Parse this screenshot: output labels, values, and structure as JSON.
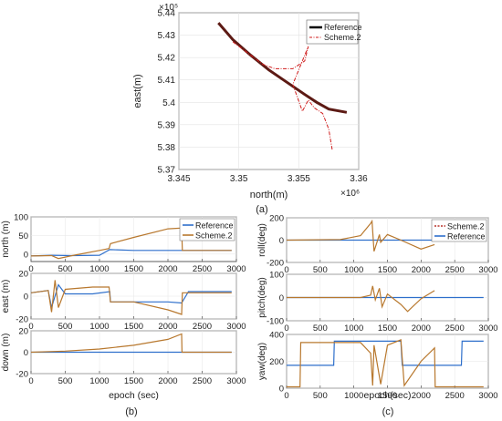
{
  "figure": {
    "caption_a": "(a)",
    "caption_b": "(b)",
    "caption_c": "(c)"
  },
  "colors": {
    "reference_a": "#000000",
    "scheme2_a": "#d01c1c",
    "reference_bc": "#2e6fcb",
    "scheme2_bc": "#b8782e",
    "scheme2_c_legend": "#b8332a"
  },
  "chart_data": [
    {
      "id": "a",
      "type": "line",
      "xlabel": "north(m)",
      "ylabel": "east(m)",
      "x_exponent": "×10⁶",
      "y_exponent": "×10⁵",
      "xlim": [
        3.345,
        3.36
      ],
      "ylim": [
        5.37,
        5.44
      ],
      "xticks": [
        3.345,
        3.35,
        3.355,
        3.36
      ],
      "xtick_labels": [
        "3.345",
        "3.35",
        "3.355",
        "3.36"
      ],
      "yticks": [
        5.37,
        5.38,
        5.39,
        5.4,
        5.41,
        5.42,
        5.43,
        5.44
      ],
      "ytick_labels": [
        "5.37",
        "5.38",
        "5.39",
        "5.4",
        "5.41",
        "5.42",
        "5.43",
        "5.44"
      ],
      "grid": true,
      "legend": "top-right",
      "series": [
        {
          "name": "Reference",
          "style": "solid-thick",
          "x": [
            3.3483,
            3.3495,
            3.351,
            3.3525,
            3.354,
            3.3555,
            3.3565,
            3.3575,
            3.359
          ],
          "y": [
            5.4355,
            5.428,
            5.421,
            5.4145,
            5.409,
            5.4035,
            5.4,
            5.397,
            5.3955
          ]
        },
        {
          "name": "Scheme.2",
          "style": "dashdot",
          "x": [
            3.3495,
            3.351,
            3.352,
            3.353,
            3.3545,
            3.3555,
            3.3558,
            3.3545,
            3.3553,
            3.3558,
            3.3563,
            3.357,
            3.3575,
            3.3578
          ],
          "y": [
            5.427,
            5.421,
            5.417,
            5.415,
            5.415,
            5.4185,
            5.425,
            5.408,
            5.396,
            5.401,
            5.3975,
            5.395,
            5.388,
            5.3785
          ]
        }
      ]
    },
    {
      "id": "b",
      "type": "line",
      "xlabel": "epoch (sec)",
      "xlim": [
        0,
        3000
      ],
      "xticks": [
        0,
        500,
        1000,
        1500,
        2000,
        2500,
        3000
      ],
      "xtick_labels": [
        "0",
        "500",
        "1000",
        "1500",
        "2000",
        "2500",
        "3000"
      ],
      "legend": "top-right",
      "panels": [
        {
          "ylabel": "north (m)",
          "ylim": [
            -20,
            100
          ],
          "yticks": [
            0,
            50,
            100
          ],
          "ytick_labels": [
            "0",
            "50",
            "100"
          ],
          "series": [
            {
              "name": "Reference",
              "x": [
                0,
                300,
                600,
                1000,
                1150,
                1500,
                2000,
                2200,
                2500,
                2930
              ],
              "y": [
                -5,
                -3,
                -4,
                -3,
                12,
                10,
                10,
                10,
                10,
                10
              ]
            },
            {
              "name": "Scheme.2",
              "x": [
                0,
                300,
                400,
                600,
                1000,
                1140,
                1160,
                1500,
                2000,
                2200,
                2210,
                2500,
                2930
              ],
              "y": [
                -5,
                -4,
                -12,
                -4,
                10,
                15,
                28,
                45,
                68,
                70,
                10,
                10,
                10
              ]
            }
          ]
        },
        {
          "ylabel": "east (m)",
          "ylim": [
            -20,
            20
          ],
          "yticks": [
            -20,
            0,
            20
          ],
          "ytick_labels": [
            "-20",
            "0",
            "20"
          ],
          "series": [
            {
              "name": "Reference",
              "x": [
                0,
                250,
                300,
                400,
                500,
                900,
                1150,
                1160,
                1500,
                2000,
                2200,
                2300,
                2930
              ],
              "y": [
                3,
                5,
                -10,
                10,
                2,
                2,
                4,
                -5,
                -5,
                -5,
                -6,
                4,
                4
              ]
            },
            {
              "name": "Scheme.2",
              "x": [
                0,
                250,
                300,
                350,
                400,
                500,
                900,
                1140,
                1160,
                1500,
                2000,
                2200,
                2210,
                2930
              ],
              "y": [
                3,
                5,
                -14,
                14,
                -10,
                6,
                8,
                8,
                -5,
                -5,
                -12,
                -16,
                3,
                3
              ]
            }
          ]
        },
        {
          "ylabel": "down (m)",
          "ylim": [
            -20,
            20
          ],
          "yticks": [
            -20,
            0,
            20
          ],
          "ytick_labels": [
            "-20",
            "0",
            "20"
          ],
          "series": [
            {
              "name": "Reference",
              "x": [
                0,
                2930
              ],
              "y": [
                0,
                0
              ]
            },
            {
              "name": "Scheme.2",
              "x": [
                0,
                500,
                1000,
                1500,
                2000,
                2200,
                2205,
                2930
              ],
              "y": [
                0,
                1,
                3,
                6.5,
                12,
                17,
                0,
                0
              ]
            }
          ]
        }
      ]
    },
    {
      "id": "c",
      "type": "line",
      "xlabel": "epoch(sec)",
      "xlim": [
        0,
        3000
      ],
      "xticks": [
        0,
        500,
        1000,
        1500,
        2000,
        2500,
        3000
      ],
      "xtick_labels": [
        "0",
        "500",
        "1000",
        "1500",
        "2000",
        "2500",
        "3000"
      ],
      "legend": "top-right",
      "panels": [
        {
          "ylabel": "roll(deg)",
          "ylim": [
            -200,
            200
          ],
          "yticks": [
            -200,
            0,
            200
          ],
          "ytick_labels": [
            "-200",
            "0",
            "200"
          ],
          "series": [
            {
              "name": "Reference",
              "x": [
                0,
                2930
              ],
              "y": [
                0,
                0
              ]
            },
            {
              "name": "Scheme.2",
              "x": [
                0,
                800,
                1100,
                1250,
                1270,
                1300,
                1380,
                1400,
                1500,
                1700,
                2000,
                2200
              ],
              "y": [
                0,
                5,
                40,
                150,
                170,
                -100,
                50,
                -20,
                50,
                0,
                -80,
                -40
              ]
            }
          ]
        },
        {
          "ylabel": "pitch(deg)",
          "ylim": [
            -100,
            100
          ],
          "yticks": [
            -100,
            0,
            100
          ],
          "ytick_labels": [
            "-100",
            "0",
            "100"
          ],
          "series": [
            {
              "name": "Reference",
              "x": [
                0,
                2930
              ],
              "y": [
                0,
                0
              ]
            },
            {
              "name": "Scheme.2",
              "x": [
                0,
                1100,
                1250,
                1280,
                1320,
                1380,
                1420,
                1500,
                1700,
                1800,
                2000,
                2200
              ],
              "y": [
                0,
                0,
                10,
                50,
                -10,
                40,
                -40,
                15,
                -30,
                -60,
                -5,
                30
              ]
            }
          ]
        },
        {
          "ylabel": "yaw(deg)",
          "ylim": [
            0,
            400
          ],
          "yticks": [
            0,
            200,
            400
          ],
          "ytick_labels": [
            "0",
            "200",
            "400"
          ],
          "series": [
            {
              "name": "Reference",
              "x": [
                0,
                700,
                710,
                1100,
                1120,
                1700,
                1720,
                2200,
                2210,
                2600,
                2610,
                2930
              ],
              "y": [
                170,
                170,
                350,
                350,
                350,
                350,
                170,
                170,
                170,
                170,
                350,
                350
              ]
            },
            {
              "name": "Scheme.2",
              "x": [
                0,
                200,
                210,
                700,
                1100,
                1250,
                1280,
                1300,
                1400,
                1500,
                1700,
                1750,
                2000,
                2200,
                2210,
                2930
              ],
              "y": [
                10,
                10,
                340,
                340,
                340,
                260,
                20,
                320,
                30,
                320,
                360,
                20,
                200,
                300,
                10,
                10
              ]
            }
          ]
        }
      ]
    }
  ]
}
